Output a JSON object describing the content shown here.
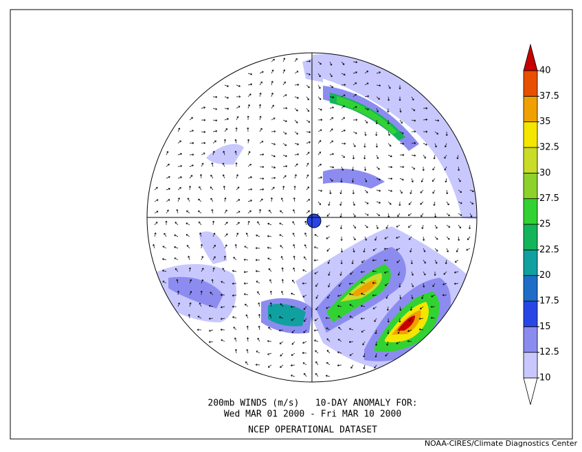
{
  "caption": {
    "line1": "200mb WINDS (m/s)   10-DAY ANOMALY FOR:",
    "line2": "Wed MAR 01 2000 - Fri MAR 10 2000",
    "line3": "NCEP OPERATIONAL DATASET"
  },
  "credit": "NOAA-CIRES/Climate Diagnostics Center",
  "colorbar": {
    "levels": [
      10,
      12.5,
      15,
      17.5,
      20,
      22.5,
      25,
      27.5,
      30,
      32.5,
      35,
      37.5,
      40
    ],
    "colors": [
      "#ffffff",
      "#c8c8ff",
      "#8c8cf0",
      "#2846e6",
      "#1e6ec8",
      "#10a0a0",
      "#14b45a",
      "#32d232",
      "#8cd22a",
      "#c8dc28",
      "#f5e600",
      "#f0a000",
      "#e65000",
      "#c80000"
    ]
  }
}
